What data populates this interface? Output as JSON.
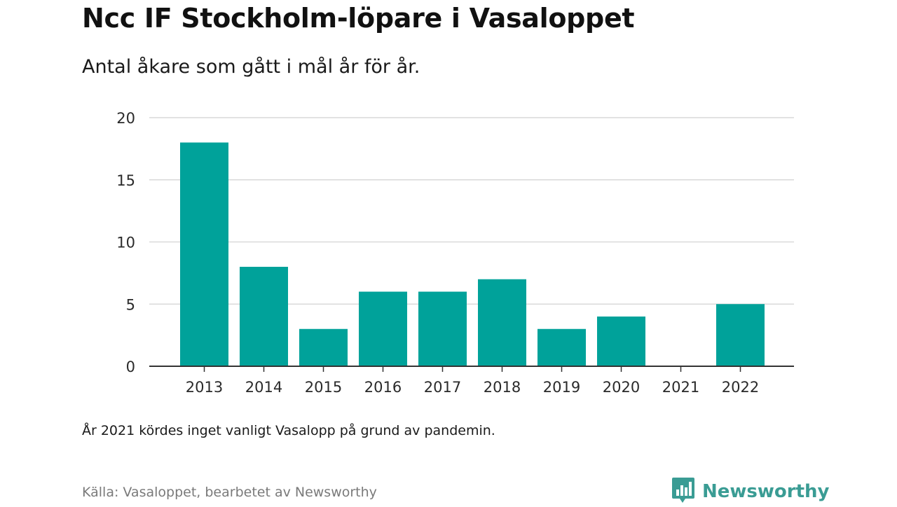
{
  "header": {
    "title": "Ncc IF Stockholm-löpare i Vasaloppet",
    "subtitle": "Antal åkare som gått i mål år för år."
  },
  "footer": {
    "note": "År 2021 kördes inget vanligt Vasalopp på grund av pandemin.",
    "source": "Källa: Vasaloppet, bearbetet av Newsworthy",
    "brand": "Newsworthy",
    "brand_icon": "newsworthy-logo-icon"
  },
  "colors": {
    "bar": "#00a29a",
    "grid": "#d9d9d9",
    "axis": "#333333",
    "brand": "#3a9c94"
  },
  "chart_data": {
    "type": "bar",
    "title": "Ncc IF Stockholm-löpare i Vasaloppet",
    "subtitle": "Antal åkare som gått i mål år för år.",
    "xlabel": "",
    "ylabel": "",
    "categories": [
      "2013",
      "2014",
      "2015",
      "2016",
      "2017",
      "2018",
      "2019",
      "2020",
      "2021",
      "2022"
    ],
    "values": [
      18,
      8,
      3,
      6,
      6,
      7,
      3,
      4,
      0,
      5
    ],
    "ylim": [
      0,
      20
    ],
    "yticks": [
      0,
      5,
      10,
      15,
      20
    ],
    "grid": true,
    "legend": "none"
  }
}
